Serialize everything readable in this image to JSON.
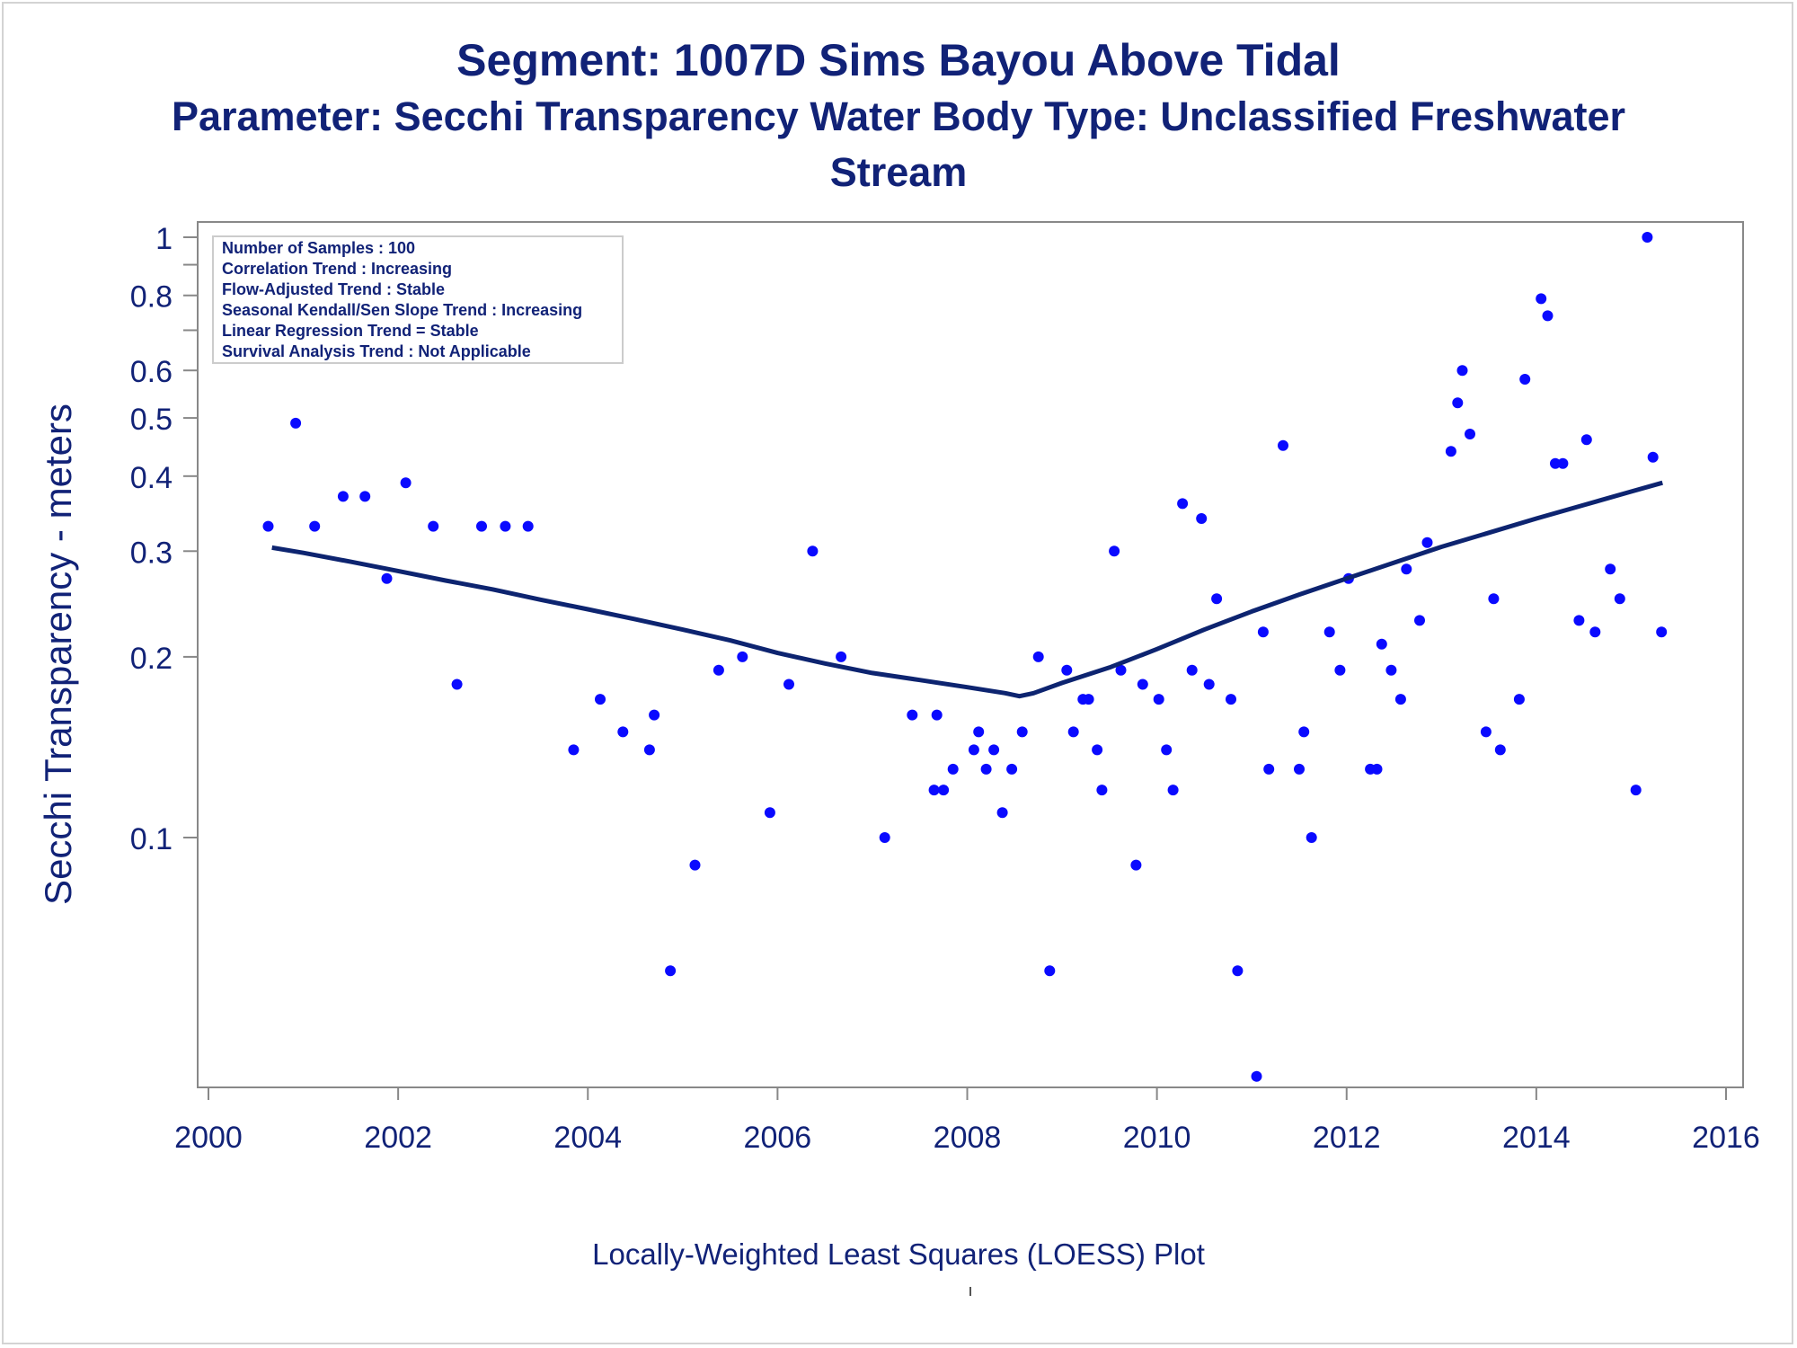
{
  "title": {
    "line1": "Segment: 1007D  Sims Bayou Above Tidal",
    "line2": "Parameter: Secchi Transparency   Water Body Type: Unclassified Freshwater",
    "line3": "Stream"
  },
  "footnote": "Locally-Weighted Least Squares (LOESS) Plot",
  "footnote_mark": "'",
  "colors": {
    "text": "#112277",
    "points": "#0a0aff",
    "line": "#0d2470",
    "axis": "#888888"
  },
  "chart_data": {
    "type": "scatter",
    "ylabel": "Secchi Transparency - meters",
    "xlabel": "",
    "xlim": [
      2000,
      2016
    ],
    "ylim": [
      0.04,
      1.0
    ],
    "yscale": "log",
    "x_ticks": [
      "2000",
      "2002",
      "2004",
      "2006",
      "2008",
      "2010",
      "2012",
      "2014",
      "2016"
    ],
    "y_ticks": [
      "0.1",
      "0.2",
      "0.3",
      "0.4",
      "0.5",
      "0.6",
      "0.8",
      "1"
    ],
    "y_tick_values": [
      0.1,
      0.2,
      0.3,
      0.4,
      0.5,
      0.6,
      0.8,
      1.0
    ],
    "y_minor_ticks": [
      0.7,
      0.9
    ],
    "x_tick_values": [
      2000,
      2002,
      2004,
      2006,
      2008,
      2010,
      2012,
      2014,
      2016
    ],
    "legend_position": "top-left",
    "stats": [
      "Number of Samples : 100",
      "Correlation Trend : Increasing",
      "Flow-Adjusted Trend : Stable",
      "Seasonal Kendall/Sen Slope Trend : Increasing",
      "Linear Regression Trend = Stable",
      "Survival Analysis Trend : Not Applicable"
    ],
    "points": [
      [
        2000.63,
        0.33
      ],
      [
        2000.92,
        0.49
      ],
      [
        2001.12,
        0.33
      ],
      [
        2001.42,
        0.37
      ],
      [
        2001.65,
        0.37
      ],
      [
        2001.88,
        0.27
      ],
      [
        2002.08,
        0.39
      ],
      [
        2002.37,
        0.33
      ],
      [
        2002.62,
        0.18
      ],
      [
        2002.88,
        0.33
      ],
      [
        2003.13,
        0.33
      ],
      [
        2003.37,
        0.33
      ],
      [
        2003.85,
        0.14
      ],
      [
        2004.13,
        0.17
      ],
      [
        2004.37,
        0.15
      ],
      [
        2004.65,
        0.14
      ],
      [
        2004.7,
        0.16
      ],
      [
        2004.87,
        0.06
      ],
      [
        2005.13,
        0.09
      ],
      [
        2005.38,
        0.19
      ],
      [
        2005.63,
        0.2
      ],
      [
        2005.92,
        0.11
      ],
      [
        2006.12,
        0.18
      ],
      [
        2006.37,
        0.3
      ],
      [
        2006.67,
        0.2
      ],
      [
        2007.13,
        0.1
      ],
      [
        2007.42,
        0.16
      ],
      [
        2007.65,
        0.12
      ],
      [
        2007.68,
        0.16
      ],
      [
        2007.75,
        0.12
      ],
      [
        2007.85,
        0.13
      ],
      [
        2008.07,
        0.14
      ],
      [
        2008.12,
        0.15
      ],
      [
        2008.2,
        0.13
      ],
      [
        2008.28,
        0.14
      ],
      [
        2008.37,
        0.11
      ],
      [
        2008.47,
        0.13
      ],
      [
        2008.58,
        0.15
      ],
      [
        2008.75,
        0.2
      ],
      [
        2008.87,
        0.06
      ],
      [
        2009.05,
        0.19
      ],
      [
        2009.12,
        0.15
      ],
      [
        2009.22,
        0.17
      ],
      [
        2009.28,
        0.17
      ],
      [
        2009.37,
        0.14
      ],
      [
        2009.42,
        0.12
      ],
      [
        2009.55,
        0.3
      ],
      [
        2009.62,
        0.19
      ],
      [
        2009.78,
        0.09
      ],
      [
        2009.85,
        0.18
      ],
      [
        2010.02,
        0.17
      ],
      [
        2010.1,
        0.14
      ],
      [
        2010.17,
        0.12
      ],
      [
        2010.27,
        0.36
      ],
      [
        2010.37,
        0.19
      ],
      [
        2010.47,
        0.34
      ],
      [
        2010.55,
        0.18
      ],
      [
        2010.63,
        0.25
      ],
      [
        2010.78,
        0.17
      ],
      [
        2010.85,
        0.06
      ],
      [
        2011.05,
        0.04
      ],
      [
        2011.12,
        0.22
      ],
      [
        2011.18,
        0.13
      ],
      [
        2011.33,
        0.45
      ],
      [
        2011.5,
        0.13
      ],
      [
        2011.55,
        0.15
      ],
      [
        2011.63,
        0.1
      ],
      [
        2011.82,
        0.22
      ],
      [
        2011.93,
        0.19
      ],
      [
        2012.02,
        0.27
      ],
      [
        2012.25,
        0.13
      ],
      [
        2012.32,
        0.13
      ],
      [
        2012.37,
        0.21
      ],
      [
        2012.47,
        0.19
      ],
      [
        2012.57,
        0.17
      ],
      [
        2012.63,
        0.28
      ],
      [
        2012.77,
        0.23
      ],
      [
        2012.85,
        0.31
      ],
      [
        2013.1,
        0.44
      ],
      [
        2013.17,
        0.53
      ],
      [
        2013.22,
        0.6
      ],
      [
        2013.3,
        0.47
      ],
      [
        2013.47,
        0.15
      ],
      [
        2013.55,
        0.25
      ],
      [
        2013.62,
        0.14
      ],
      [
        2013.82,
        0.17
      ],
      [
        2013.88,
        0.58
      ],
      [
        2014.05,
        0.79
      ],
      [
        2014.12,
        0.74
      ],
      [
        2014.2,
        0.42
      ],
      [
        2014.28,
        0.42
      ],
      [
        2014.45,
        0.23
      ],
      [
        2014.53,
        0.46
      ],
      [
        2014.62,
        0.22
      ],
      [
        2014.78,
        0.28
      ],
      [
        2014.88,
        0.25
      ],
      [
        2015.05,
        0.12
      ],
      [
        2015.17,
        1.0
      ],
      [
        2015.23,
        0.43
      ],
      [
        2015.32,
        0.22
      ]
    ],
    "loess": [
      [
        2000.67,
        0.304
      ],
      [
        2001.0,
        0.298
      ],
      [
        2001.5,
        0.288
      ],
      [
        2002.0,
        0.278
      ],
      [
        2002.5,
        0.268
      ],
      [
        2003.0,
        0.259
      ],
      [
        2003.5,
        0.249
      ],
      [
        2004.0,
        0.24
      ],
      [
        2004.5,
        0.231
      ],
      [
        2005.0,
        0.222
      ],
      [
        2005.5,
        0.213
      ],
      [
        2006.0,
        0.203
      ],
      [
        2006.5,
        0.195
      ],
      [
        2007.0,
        0.188
      ],
      [
        2007.5,
        0.183
      ],
      [
        2008.0,
        0.178
      ],
      [
        2008.4,
        0.174
      ],
      [
        2008.55,
        0.172
      ],
      [
        2008.7,
        0.174
      ],
      [
        2009.0,
        0.181
      ],
      [
        2009.5,
        0.192
      ],
      [
        2010.0,
        0.206
      ],
      [
        2010.5,
        0.222
      ],
      [
        2011.0,
        0.238
      ],
      [
        2011.5,
        0.254
      ],
      [
        2012.0,
        0.27
      ],
      [
        2012.5,
        0.287
      ],
      [
        2013.0,
        0.305
      ],
      [
        2013.5,
        0.322
      ],
      [
        2014.0,
        0.34
      ],
      [
        2014.5,
        0.358
      ],
      [
        2015.0,
        0.377
      ],
      [
        2015.33,
        0.39
      ]
    ]
  }
}
